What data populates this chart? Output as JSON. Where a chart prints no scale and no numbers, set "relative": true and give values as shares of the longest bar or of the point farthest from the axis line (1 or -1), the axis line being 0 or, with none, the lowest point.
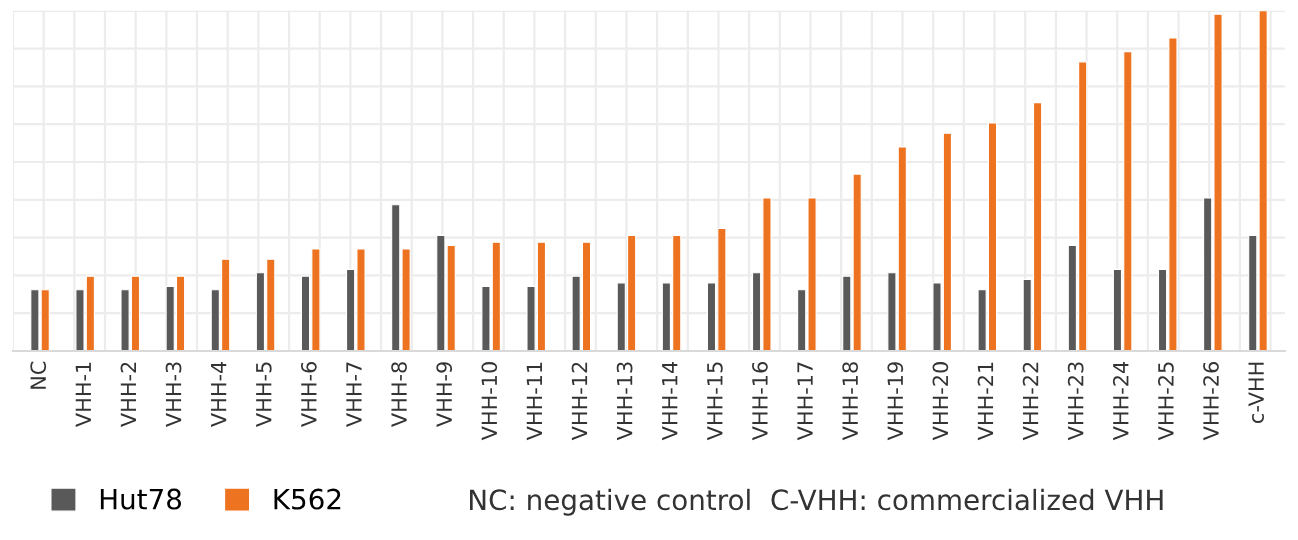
{
  "chart_data": {
    "type": "bar",
    "relative": true,
    "grid": true,
    "legend": "bottom left",
    "categories": [
      "NC",
      "VHH-1",
      "VHH-2",
      "VHH-3",
      "VHH-4",
      "VHH-5",
      "VHH-6",
      "VHH-7",
      "VHH-8",
      "VHH-9",
      "VHH-10",
      "VHH-11",
      "VHH-12",
      "VHH-13",
      "VHH-14",
      "VHH-15",
      "VHH-16",
      "VHH-17",
      "VHH-18",
      "VHH-19",
      "VHH-20",
      "VHH-21",
      "VHH-22",
      "VHH-23",
      "VHH-24",
      "VHH-25",
      "VHH-26",
      "c-VHH"
    ],
    "series": [
      {
        "name": "Hut78",
        "color": "#595959",
        "values": [
          0.18,
          0.18,
          0.18,
          0.19,
          0.18,
          0.23,
          0.22,
          0.24,
          0.43,
          0.34,
          0.19,
          0.19,
          0.22,
          0.2,
          0.2,
          0.2,
          0.23,
          0.18,
          0.22,
          0.23,
          0.2,
          0.18,
          0.21,
          0.31,
          0.24,
          0.24,
          0.45,
          0.34
        ]
      },
      {
        "name": "K562",
        "color": "#ed7320",
        "values": [
          0.18,
          0.22,
          0.22,
          0.22,
          0.27,
          0.27,
          0.3,
          0.3,
          0.3,
          0.31,
          0.32,
          0.32,
          0.32,
          0.34,
          0.34,
          0.36,
          0.45,
          0.45,
          0.52,
          0.6,
          0.64,
          0.67,
          0.73,
          0.85,
          0.88,
          0.92,
          0.99,
          1
        ]
      }
    ],
    "annotations": [
      "NC: negative control  C-VHH: commercialized VHH"
    ]
  }
}
